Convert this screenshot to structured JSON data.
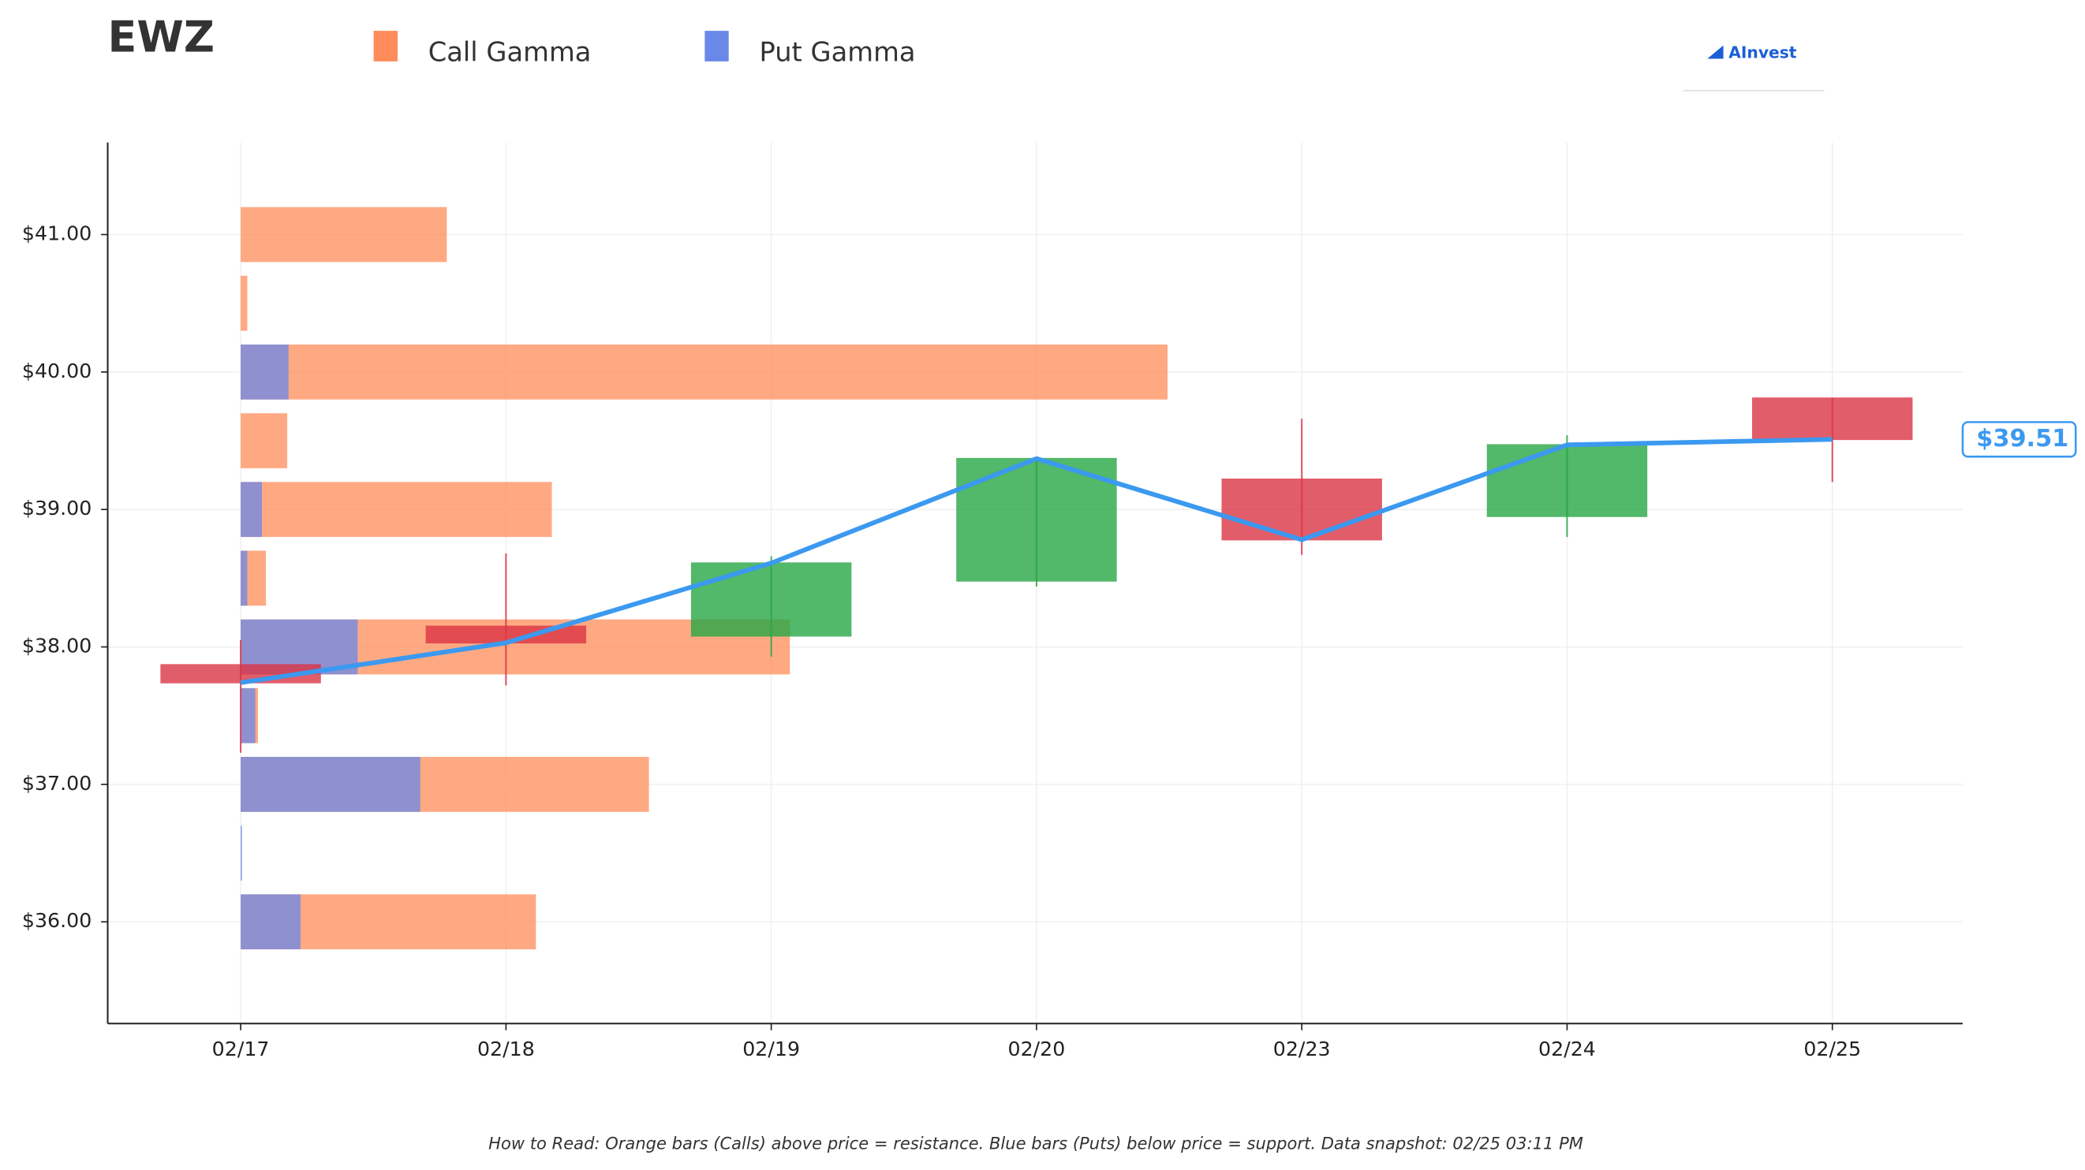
{
  "chart_data": {
    "type": "candlestick",
    "title": "EWZ",
    "categories": [
      "02/17",
      "02/18",
      "02/19",
      "02/20",
      "02/23",
      "02/24",
      "02/25"
    ],
    "open": [
      37.87,
      38.15,
      38.08,
      38.48,
      39.22,
      38.95,
      39.81
    ],
    "high": [
      38.05,
      38.68,
      38.66,
      39.38,
      39.66,
      39.54,
      39.81
    ],
    "low": [
      37.23,
      37.72,
      37.93,
      38.44,
      38.67,
      38.8,
      39.2
    ],
    "close": [
      37.74,
      38.03,
      38.61,
      39.37,
      38.78,
      39.47,
      39.51
    ],
    "up_color": "#28a745",
    "down_color": "#dc3545",
    "line_color": "#3b99f0",
    "last_price_label": "$39.51",
    "ylim": [
      35.26,
      41.67
    ],
    "yticks": [
      {
        "value": 36,
        "label": "$36.00"
      },
      {
        "value": 37,
        "label": "$37.00"
      },
      {
        "value": 38,
        "label": "$38.00"
      },
      {
        "value": 39,
        "label": "$39.00"
      },
      {
        "value": 40,
        "label": "$40.00"
      },
      {
        "value": 41,
        "label": "$41.00"
      }
    ],
    "grid": true,
    "gamma": {
      "strikes": [
        36,
        36.5,
        37,
        37.5,
        38,
        38.5,
        39,
        39.5,
        40,
        40.5,
        41
      ],
      "series": [
        {
          "name": "Call Gamma",
          "color": "#ff8c5a",
          "values": [
            222,
            0,
            307,
            13,
            413,
            19,
            234,
            35,
            697,
            5,
            155
          ]
        },
        {
          "name": "Put Gamma",
          "color": "#6a88e8",
          "values": [
            45,
            1,
            135,
            11,
            88,
            5,
            16,
            0,
            36,
            0,
            0
          ]
        }
      ]
    },
    "logo": "AInvest",
    "note": "How to Read: Orange bars (Calls) above price = resistance. Blue bars (Puts) below price = support. Data snapshot: 02/25 03:11 PM"
  }
}
